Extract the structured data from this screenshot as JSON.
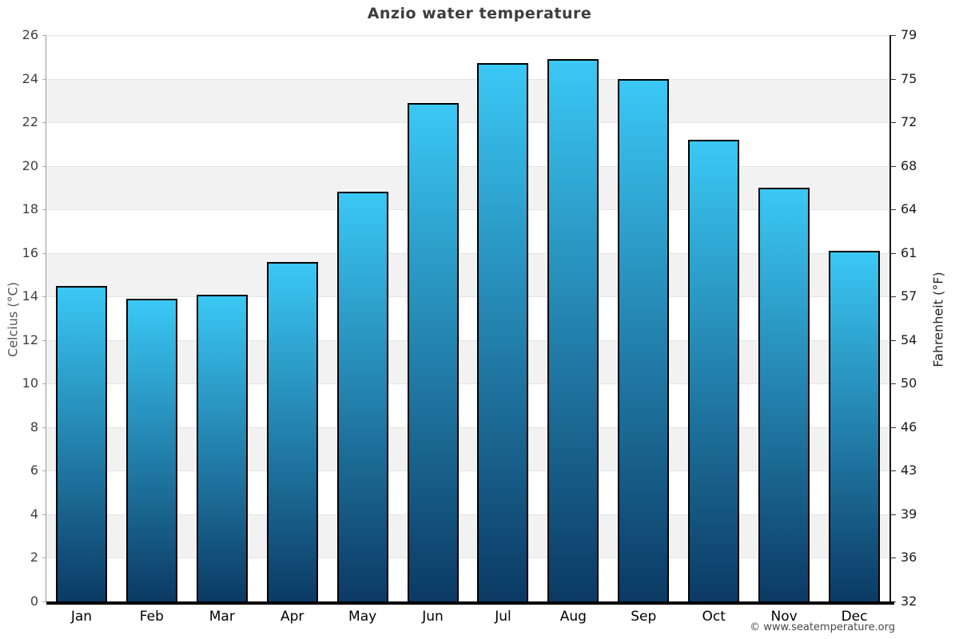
{
  "chart_data": {
    "type": "bar",
    "title": "Anzio water temperature",
    "categories": [
      "Jan",
      "Feb",
      "Mar",
      "Apr",
      "May",
      "Jun",
      "Jul",
      "Aug",
      "Sep",
      "Oct",
      "Nov",
      "Dec"
    ],
    "values": [
      14.5,
      13.9,
      14.1,
      15.6,
      18.8,
      22.9,
      24.7,
      24.9,
      24.0,
      21.2,
      19.0,
      16.1
    ],
    "value_unit": "°C",
    "ylabel_left": "Celcius (°C)",
    "ylabel_right": "Fahrenheit (°F)",
    "ylim_celsius": [
      0,
      26
    ],
    "yticks_celsius": [
      0,
      2,
      4,
      6,
      8,
      10,
      12,
      14,
      16,
      18,
      20,
      22,
      24,
      26
    ],
    "yticks_fahrenheit": [
      32,
      36,
      39,
      43,
      46,
      50,
      54,
      57,
      61,
      64,
      68,
      72,
      75,
      79
    ],
    "legend": "none",
    "grid": "alternating horizontal bands every 2°C",
    "colors": {
      "bar_gradient_top": "#3bc8f5",
      "bar_gradient_bottom": "#0b3a64",
      "bar_border": "#000000",
      "band_gray": "#f2f2f2",
      "band_white": "#ffffff",
      "gridline": "#e4e4e4",
      "title_text": "#3d3d3d"
    }
  },
  "footer": {
    "copyright": "© www.seatemperature.org"
  }
}
